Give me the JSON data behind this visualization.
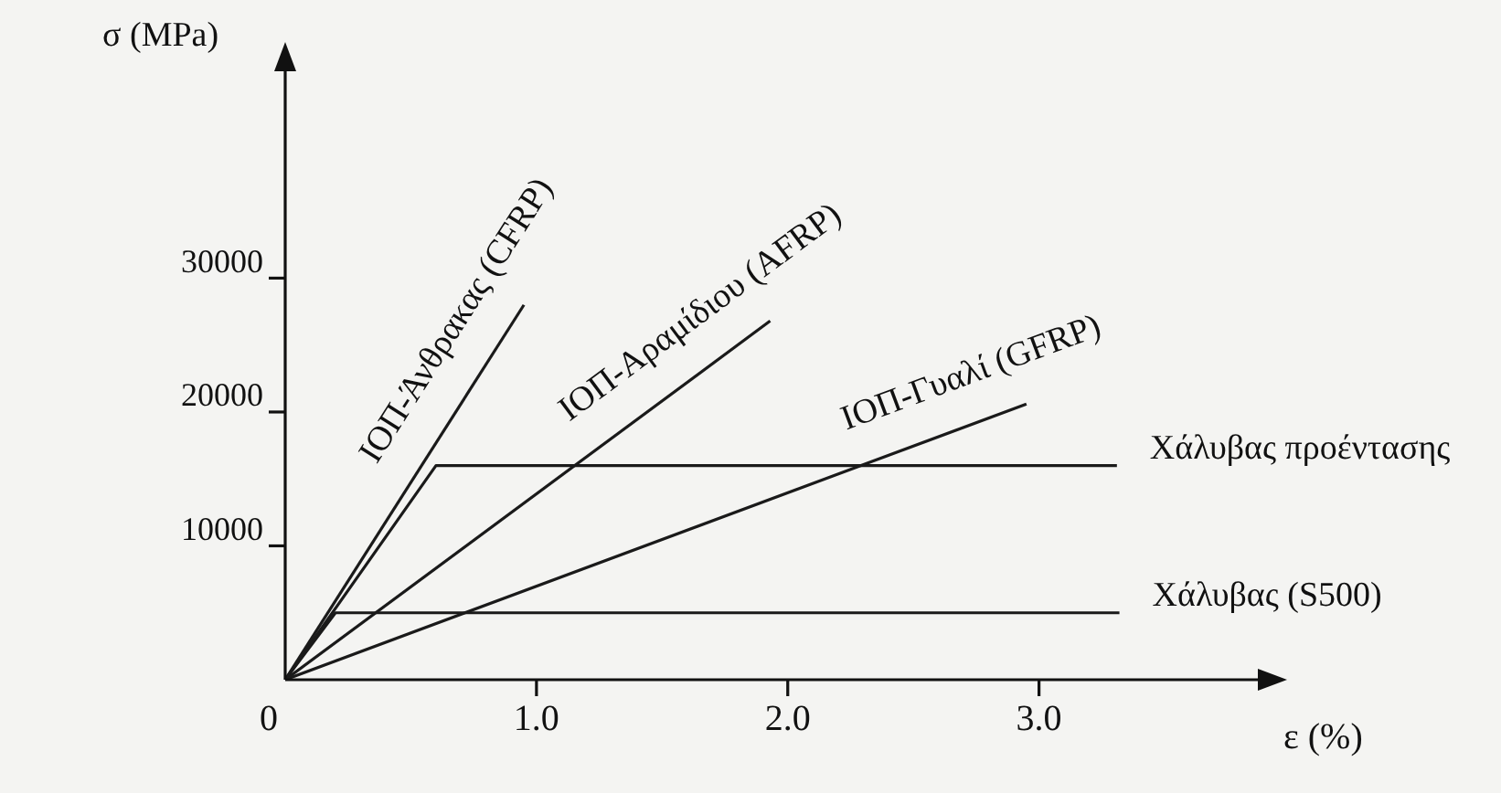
{
  "chart_data": {
    "type": "line",
    "xlabel": "ε (%)",
    "ylabel": "σ (MPa)",
    "xlim": [
      0,
      3.9
    ],
    "ylim": [
      0,
      46000
    ],
    "xticks": [
      {
        "value": 0,
        "label": "0"
      },
      {
        "value": 1,
        "label": "1.0"
      },
      {
        "value": 2,
        "label": "2.0"
      },
      {
        "value": 3,
        "label": "3.0"
      }
    ],
    "yticks": [
      10000,
      20000,
      30000
    ],
    "marker": "none",
    "line_style": "solid",
    "series": [
      {
        "name": "ΙΟΠ-Άνθρακας (CFRP)",
        "color": "#1a1a1a",
        "x": [
          0,
          0.95
        ],
        "values": [
          0,
          28000
        ]
      },
      {
        "name": "ΙΟΠ-Αραμίδιου (AFRP)",
        "color": "#1a1a1a",
        "x": [
          0,
          1.93
        ],
        "values": [
          0,
          26800
        ]
      },
      {
        "name": "ΙΟΠ-Γυαλί (GFRP)",
        "color": "#1a1a1a",
        "x": [
          0,
          2.95
        ],
        "values": [
          0,
          20600
        ]
      },
      {
        "name": "Χάλυβας προέντασης",
        "color": "#1a1a1a",
        "x": [
          0,
          0.6,
          3.31
        ],
        "values": [
          0,
          16000,
          16000
        ]
      },
      {
        "name": "Χάλυβας (S500)",
        "color": "#1a1a1a",
        "x": [
          0,
          0.2,
          3.32
        ],
        "values": [
          0,
          5000,
          5000
        ]
      }
    ]
  }
}
